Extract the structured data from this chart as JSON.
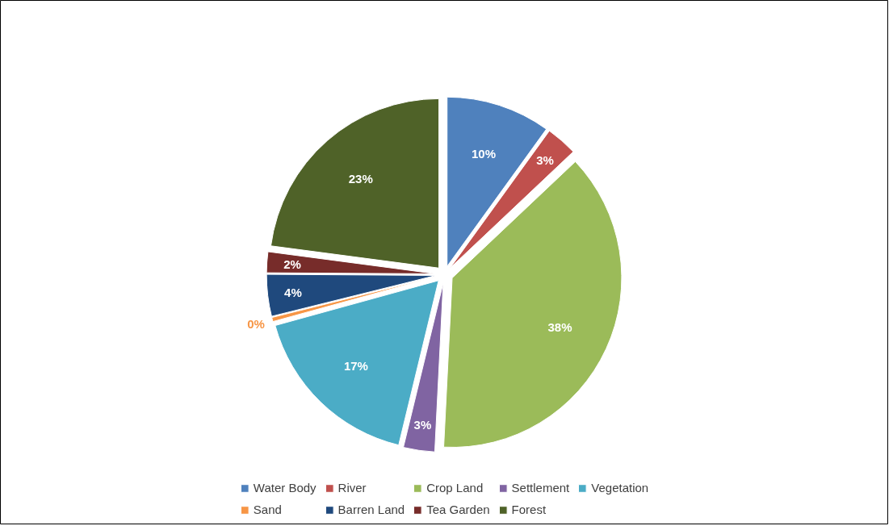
{
  "chart_data": {
    "type": "pie",
    "categories": [
      "Water Body",
      "River",
      "Crop Land",
      "Settlement",
      "Vegetation",
      "Sand",
      "Barren Land",
      "Tea Garden",
      "Forest"
    ],
    "values": [
      10,
      3,
      38,
      3,
      17,
      0.4,
      4,
      2,
      23
    ],
    "value_labels": [
      "10%",
      "3%",
      "38%",
      "3%",
      "17%",
      "0%",
      "4%",
      "2%",
      "23%"
    ],
    "colors": [
      "#4f81bd",
      "#c0504d",
      "#9bbb59",
      "#8064a2",
      "#4bacc6",
      "#f79646",
      "#1f497d",
      "#772c2a",
      "#4f6228"
    ],
    "legend": "bottom"
  }
}
